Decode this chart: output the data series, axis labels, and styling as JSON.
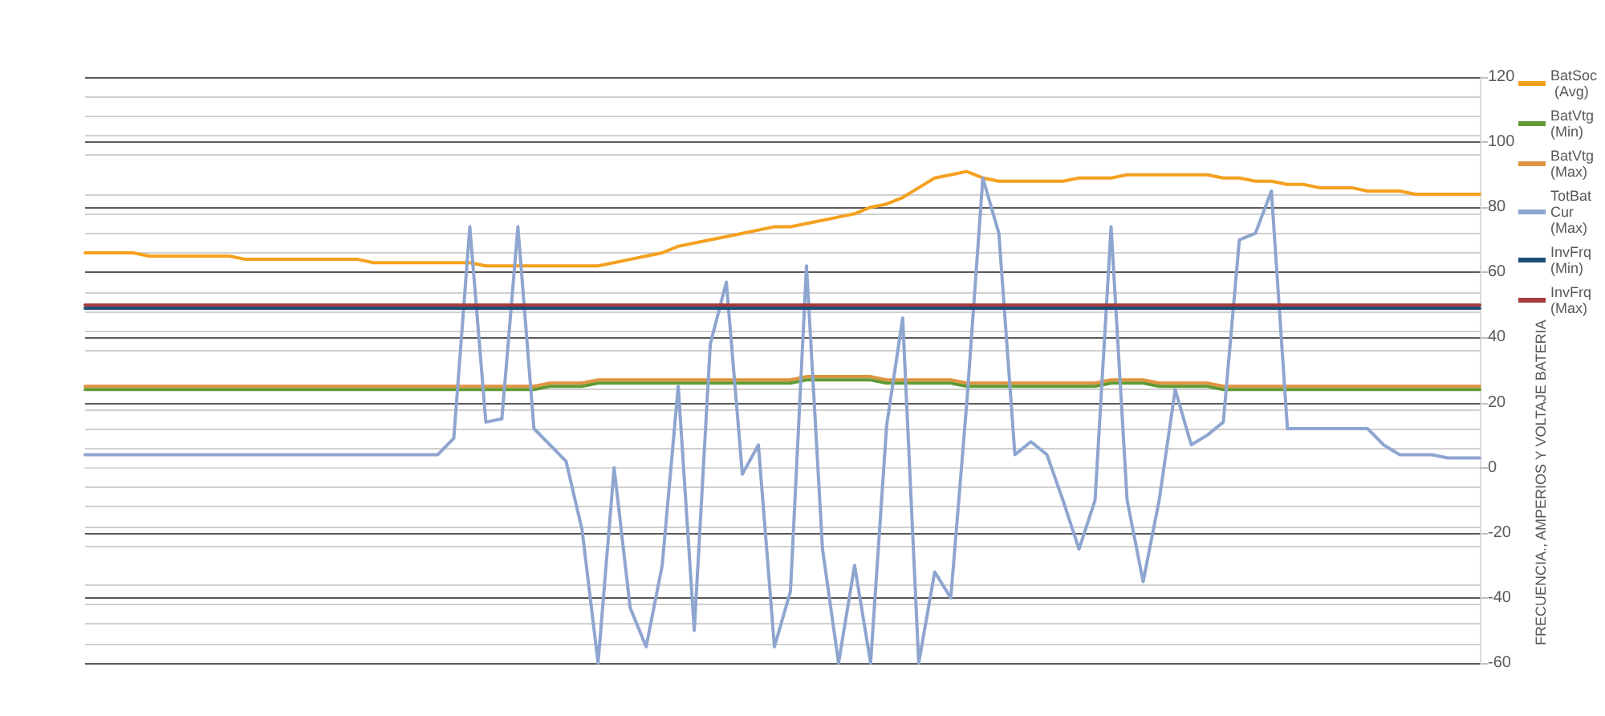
{
  "chart_data": {
    "type": "line",
    "ylabel": "FRECUENCIA., AMPERIOS Y VOLTAJE BATERIA",
    "categories": [
      null,
      null,
      null,
      null,
      null,
      null,
      null,
      null,
      null,
      null,
      null,
      null,
      null,
      null,
      null,
      null,
      null,
      null,
      null,
      null,
      null,
      null,
      null,
      null,
      null,
      null,
      null,
      null,
      null,
      null,
      null,
      null,
      null,
      null,
      null,
      null,
      null,
      null,
      null,
      null,
      null,
      null,
      null,
      null,
      null,
      null,
      null,
      null,
      null,
      null,
      null,
      null,
      null,
      null,
      null,
      null,
      null,
      null,
      null,
      null,
      null,
      null,
      null,
      null,
      null,
      null,
      null,
      null,
      null,
      null,
      null,
      null,
      null,
      null,
      null,
      null,
      null,
      null,
      null,
      null,
      null,
      null,
      null,
      null,
      null,
      null,
      null,
      null
    ],
    "series": [
      {
        "name": "BatSoc (Avg)",
        "color": "#f4a11f",
        "values": [
          66,
          66,
          66,
          66,
          65,
          65,
          65,
          65,
          65,
          65,
          64,
          64,
          64,
          64,
          64,
          64,
          64,
          64,
          63,
          63,
          63,
          63,
          63,
          63,
          63,
          62,
          62,
          62,
          62,
          62,
          62,
          62,
          62,
          63,
          64,
          65,
          66,
          68,
          69,
          70,
          71,
          72,
          73,
          74,
          74,
          75,
          76,
          77,
          78,
          80,
          81,
          83,
          86,
          89,
          90,
          91,
          89,
          88,
          88,
          88,
          88,
          88,
          89,
          89,
          89,
          90,
          90,
          90,
          90,
          90,
          90,
          89,
          89,
          88,
          88,
          87,
          87,
          86,
          86,
          86,
          85,
          85,
          85,
          84,
          84,
          84,
          84,
          84
        ]
      },
      {
        "name": "BatVtg (Min)",
        "color": "#5f9a34",
        "values": [
          24,
          24,
          24,
          24,
          24,
          24,
          24,
          24,
          24,
          24,
          24,
          24,
          24,
          24,
          24,
          24,
          24,
          24,
          24,
          24,
          24,
          24,
          24,
          24,
          24,
          24,
          24,
          24,
          24,
          25,
          25,
          25,
          26,
          26,
          26,
          26,
          26,
          26,
          26,
          26,
          26,
          26,
          26,
          26,
          26,
          27,
          27,
          27,
          27,
          27,
          26,
          26,
          26,
          26,
          26,
          25,
          25,
          25,
          25,
          25,
          25,
          25,
          25,
          25,
          26,
          26,
          26,
          25,
          25,
          25,
          25,
          24,
          24,
          24,
          24,
          24,
          24,
          24,
          24,
          24,
          24,
          24,
          24,
          24,
          24,
          24,
          24,
          24
        ]
      },
      {
        "name": "BatVtg (Max)",
        "color": "#df9440",
        "values": [
          25,
          25,
          25,
          25,
          25,
          25,
          25,
          25,
          25,
          25,
          25,
          25,
          25,
          25,
          25,
          25,
          25,
          25,
          25,
          25,
          25,
          25,
          25,
          25,
          25,
          25,
          25,
          25,
          25,
          26,
          26,
          26,
          27,
          27,
          27,
          27,
          27,
          27,
          27,
          27,
          27,
          27,
          27,
          27,
          27,
          28,
          28,
          28,
          28,
          28,
          27,
          27,
          27,
          27,
          27,
          26,
          26,
          26,
          26,
          26,
          26,
          26,
          26,
          26,
          27,
          27,
          27,
          26,
          26,
          26,
          26,
          25,
          25,
          25,
          25,
          25,
          25,
          25,
          25,
          25,
          25,
          25,
          25,
          25,
          25,
          25,
          25,
          25
        ]
      },
      {
        "name": "TotBat Cur (Max)",
        "color": "#8ea5d0",
        "values": [
          4,
          4,
          4,
          4,
          4,
          4,
          4,
          4,
          4,
          4,
          4,
          4,
          4,
          4,
          4,
          4,
          4,
          4,
          4,
          4,
          4,
          4,
          4,
          9,
          74,
          14,
          15,
          74,
          12,
          7,
          2,
          -19,
          -60,
          0,
          -43,
          -55,
          -30,
          25,
          -50,
          38,
          57,
          -2,
          7,
          -55,
          -38,
          62,
          -25,
          -60,
          -30,
          -60,
          13,
          46,
          -60,
          -32,
          -40,
          20,
          89,
          72,
          4,
          8,
          4,
          -10,
          -25,
          -10,
          74,
          -10,
          -35,
          -10,
          24,
          7,
          10,
          14,
          70,
          72,
          85,
          12,
          12,
          12,
          12,
          12,
          12,
          7,
          4,
          4,
          4,
          3,
          3,
          3
        ]
      },
      {
        "name": "InvFrq (Min)",
        "color": "#1f4e79",
        "values": [
          49,
          49,
          49,
          49,
          49,
          49,
          49,
          49,
          49,
          49,
          49,
          49,
          49,
          49,
          49,
          49,
          49,
          49,
          49,
          49,
          49,
          49,
          49,
          49,
          49,
          49,
          49,
          49,
          49,
          49,
          49,
          49,
          49,
          49,
          49,
          49,
          49,
          49,
          49,
          49,
          49,
          49,
          49,
          49,
          49,
          49,
          49,
          49,
          49,
          49,
          49,
          49,
          49,
          49,
          49,
          49,
          49,
          49,
          49,
          49,
          49,
          49,
          49,
          49,
          49,
          49,
          49,
          49,
          49,
          49,
          49,
          49,
          49,
          49,
          49,
          49,
          49,
          49,
          49,
          49,
          49,
          49,
          49,
          49,
          49,
          49,
          49,
          49
        ]
      },
      {
        "name": "InvFrq (Max)",
        "color": "#a53b3b",
        "values": [
          50,
          50,
          50,
          50,
          50,
          50,
          50,
          50,
          50,
          50,
          50,
          50,
          50,
          50,
          50,
          50,
          50,
          50,
          50,
          50,
          50,
          50,
          50,
          50,
          50,
          50,
          50,
          50,
          50,
          50,
          50,
          50,
          50,
          50,
          50,
          50,
          50,
          50,
          50,
          50,
          50,
          50,
          50,
          50,
          50,
          50,
          50,
          50,
          50,
          50,
          50,
          50,
          50,
          50,
          50,
          50,
          50,
          50,
          50,
          50,
          50,
          50,
          50,
          50,
          50,
          50,
          50,
          50,
          50,
          50,
          50,
          50,
          50,
          50,
          50,
          50,
          50,
          50,
          50,
          50,
          50,
          50,
          50,
          50,
          50,
          50,
          50,
          50
        ]
      }
    ],
    "ylim": [
      -60,
      120
    ],
    "yticks": [
      -60,
      -40,
      -20,
      0,
      20,
      40,
      60,
      80,
      100,
      120
    ],
    "grid": "y",
    "legend": "right",
    "marker": "none",
    "line_style": "solid"
  }
}
